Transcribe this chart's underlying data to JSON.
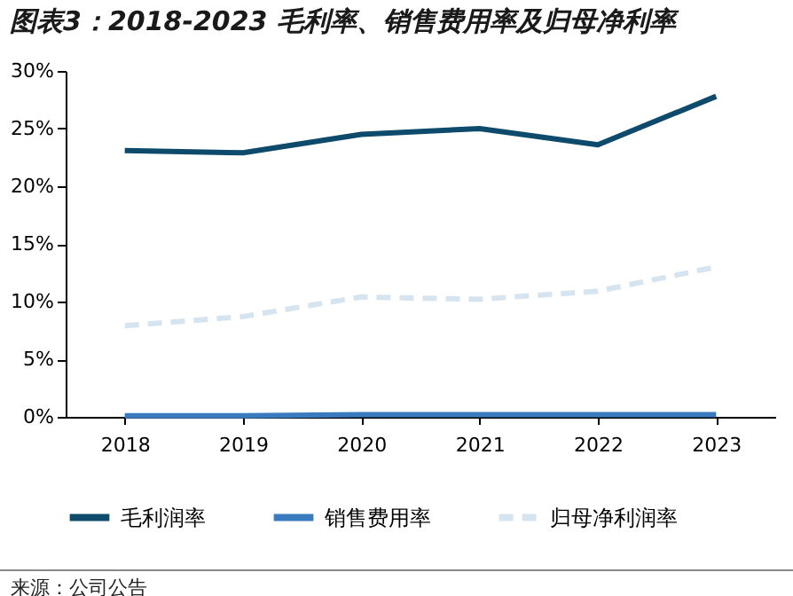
{
  "chart_data": {
    "type": "line",
    "title": "图表3：2018-2023 毛利率、销售费用率及归母净利率",
    "categories": [
      "2018",
      "2019",
      "2020",
      "2021",
      "2022",
      "2023"
    ],
    "series": [
      {
        "name": "毛利润率",
        "color": "#0d4a6b",
        "values": [
          23.1,
          22.9,
          24.5,
          25.0,
          23.6,
          27.8
        ],
        "line_style": "solid"
      },
      {
        "name": "销售费用率",
        "color": "#3a7bbf",
        "values": [
          0.1,
          0.1,
          0.2,
          0.2,
          0.2,
          0.2
        ],
        "line_style": "solid"
      },
      {
        "name": "归母净利润率",
        "color": "#d6e4f0",
        "values": [
          7.9,
          8.7,
          10.4,
          10.2,
          10.9,
          13.0
        ],
        "line_style": "dashed"
      }
    ],
    "ylim": [
      0,
      30
    ],
    "yticks": [
      {
        "value": 0,
        "label": "0%"
      },
      {
        "value": 5,
        "label": "5%"
      },
      {
        "value": 10,
        "label": "10%"
      },
      {
        "value": 15,
        "label": "15%"
      },
      {
        "value": 20,
        "label": "20%"
      },
      {
        "value": 25,
        "label": "25%"
      },
      {
        "value": 30,
        "label": "30%"
      }
    ],
    "legend": "bottom",
    "grid": false,
    "marker": "none",
    "annotations": [
      "来源：公司公告"
    ]
  }
}
